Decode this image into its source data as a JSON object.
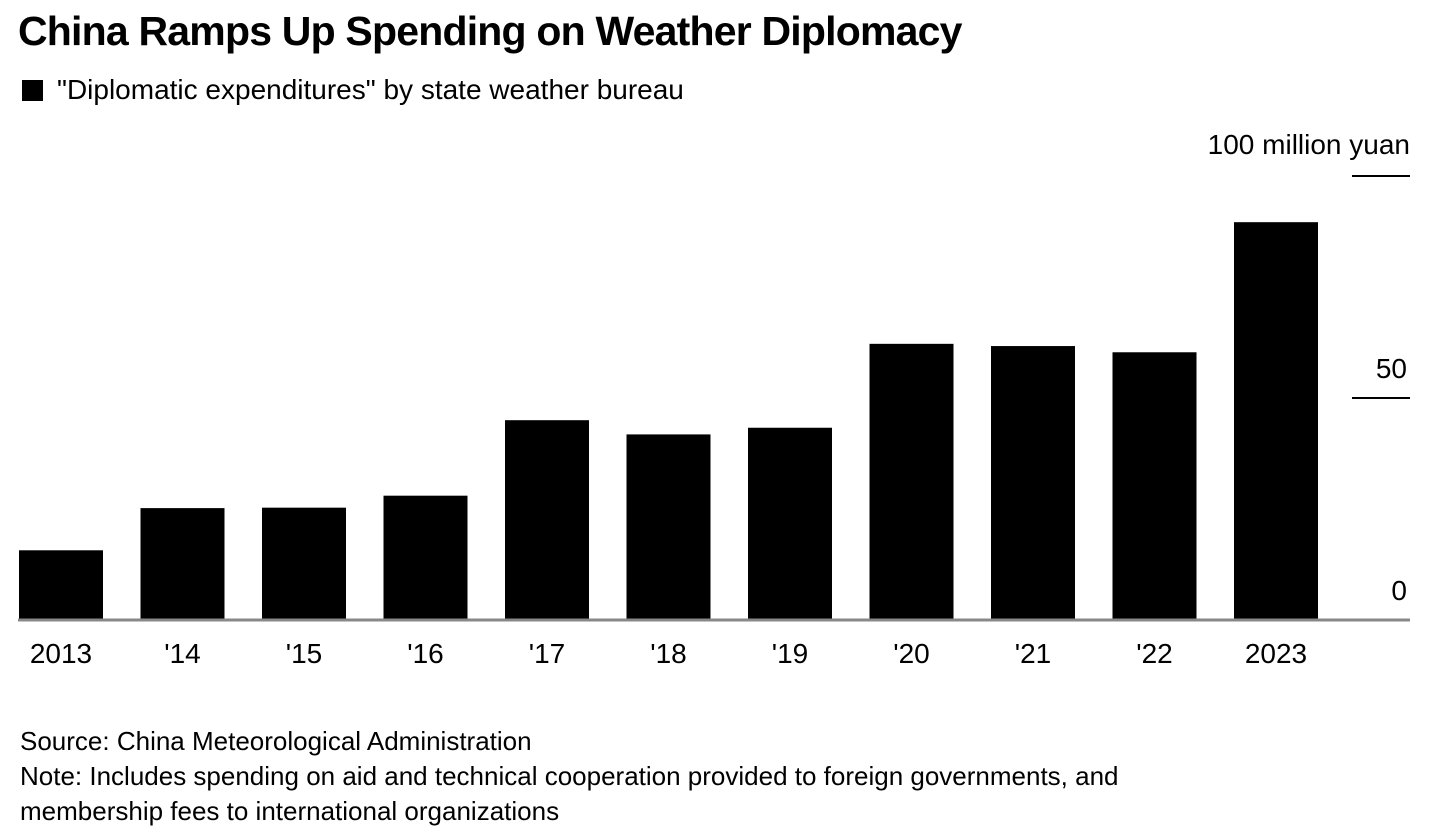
{
  "title": "China Ramps Up Spending on Weather Diplomacy",
  "legend": {
    "label": "\"Diplomatic expenditures\" by state weather bureau",
    "color": "#000000"
  },
  "chart_data": {
    "type": "bar",
    "title": "China Ramps Up Spending on Weather Diplomacy",
    "unit_label": "100 million yuan",
    "categories": [
      "2013",
      "'14",
      "'15",
      "'16",
      "'17",
      "'18",
      "'19",
      "'20",
      "'21",
      "'22",
      "2023"
    ],
    "series": [
      {
        "name": "\"Diplomatic expenditures\" by state weather bureau",
        "values": [
          15.7,
          25.2,
          25.3,
          28.0,
          45.0,
          41.8,
          43.3,
          62.2,
          61.7,
          60.3,
          89.6
        ]
      }
    ],
    "yticks": [
      {
        "value": 0,
        "label": "0"
      },
      {
        "value": 50,
        "label": "50"
      },
      {
        "value": 100,
        "label": ""
      }
    ],
    "ylim": [
      0,
      100
    ],
    "grid": false,
    "xlabel": "",
    "ylabel": "100 million yuan",
    "bar_color": "#000000",
    "axis_color": "#888888"
  },
  "source": "Source: China Meteorological Administration",
  "note_line1": "Note: Includes spending on aid and technical cooperation provided to foreign governments, and",
  "note_line2": "membership fees to international organizations"
}
